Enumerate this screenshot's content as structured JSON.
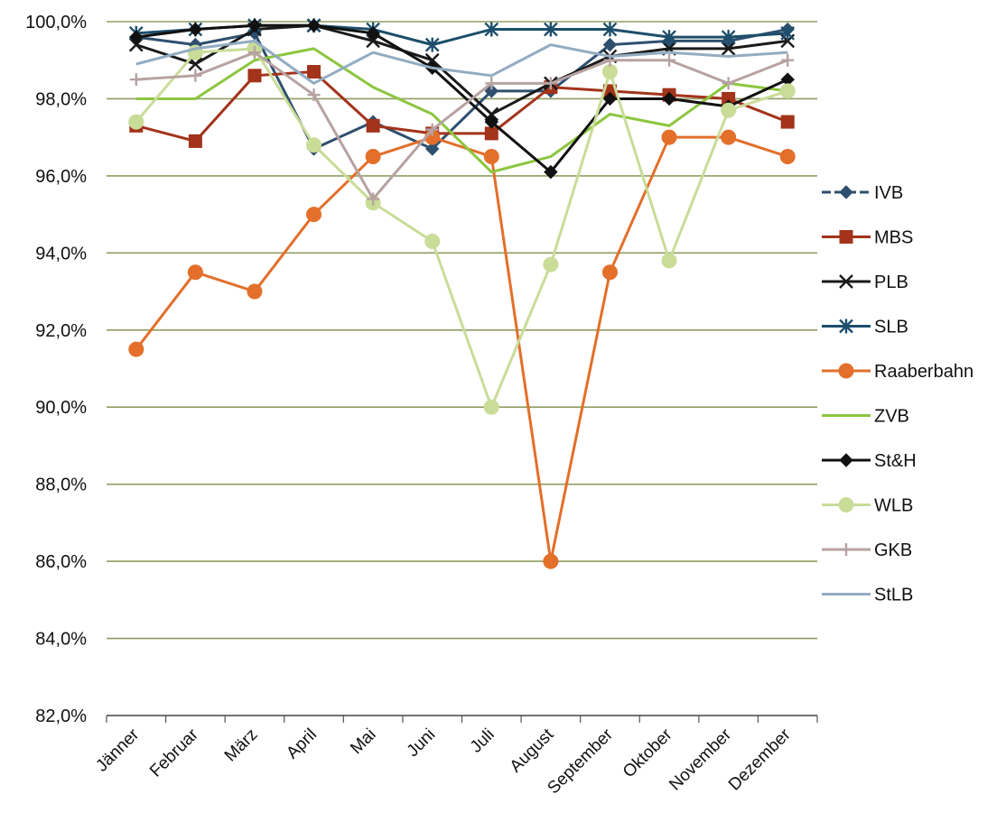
{
  "chart_data": {
    "type": "line",
    "categories": [
      "Jänner",
      "Februar",
      "März",
      "April",
      "Mai",
      "Juni",
      "Juli",
      "August",
      "September",
      "Oktober",
      "November",
      "Dezember"
    ],
    "ylim": [
      82,
      100
    ],
    "yticks": [
      "82,0%",
      "84,0%",
      "86,0%",
      "88,0%",
      "90,0%",
      "92,0%",
      "94,0%",
      "96,0%",
      "98,0%",
      "100,0%"
    ],
    "grid": true,
    "legend_position": "right",
    "series": [
      {
        "name": "IVB",
        "color": "#2f4f6f",
        "marker": "diamond",
        "dashed": true,
        "values": [
          99.6,
          99.4,
          99.7,
          96.7,
          97.4,
          96.7,
          98.2,
          98.2,
          99.4,
          99.5,
          99.5,
          99.8
        ]
      },
      {
        "name": "MBS",
        "color": "#a3331b",
        "marker": "square",
        "values": [
          97.3,
          96.9,
          98.6,
          98.7,
          97.3,
          97.1,
          97.1,
          98.3,
          98.2,
          98.1,
          98.0,
          97.4
        ]
      },
      {
        "name": "PLB",
        "color": "#1a1a1a",
        "marker": "x",
        "values": [
          99.4,
          98.9,
          99.8,
          99.9,
          99.5,
          99.0,
          97.6,
          98.4,
          99.1,
          99.3,
          99.3,
          99.5
        ]
      },
      {
        "name": "SLB",
        "color": "#1d4e6b",
        "marker": "star",
        "values": [
          99.7,
          99.8,
          99.9,
          99.9,
          99.8,
          99.4,
          99.8,
          99.8,
          99.8,
          99.6,
          99.6,
          99.7
        ]
      },
      {
        "name": "Raaberbahn",
        "color": "#e36f2a",
        "marker": "circle",
        "values": [
          91.5,
          93.5,
          93.0,
          95.0,
          96.5,
          97.0,
          96.5,
          86.0,
          93.5,
          97.0,
          97.0,
          96.5
        ]
      },
      {
        "name": "ZVB",
        "color": "#8cc63f",
        "marker": "none",
        "values": [
          98.0,
          98.0,
          99.0,
          99.3,
          98.3,
          97.6,
          96.1,
          96.5,
          97.6,
          97.3,
          98.4,
          98.2
        ]
      },
      {
        "name": "St&H",
        "color": "#111111",
        "marker": "diamond",
        "values": [
          99.6,
          99.8,
          99.9,
          99.9,
          99.7,
          98.8,
          97.4,
          96.1,
          98.0,
          98.0,
          97.8,
          98.5
        ]
      },
      {
        "name": "WLB",
        "color": "#c9dc98",
        "marker": "circle",
        "values": [
          97.4,
          99.2,
          99.3,
          96.8,
          95.3,
          94.3,
          90.0,
          93.7,
          98.7,
          93.8,
          97.7,
          98.2
        ]
      },
      {
        "name": "GKB",
        "color": "#b7a2a2",
        "marker": "plus",
        "values": [
          98.5,
          98.6,
          99.2,
          98.1,
          95.4,
          97.2,
          98.4,
          98.4,
          99.0,
          99.0,
          98.4,
          99.0
        ]
      },
      {
        "name": "StLB",
        "color": "#92acc2",
        "marker": "none",
        "values": [
          98.9,
          99.3,
          99.5,
          98.4,
          99.2,
          98.8,
          98.6,
          99.4,
          99.1,
          99.2,
          99.1,
          99.2
        ]
      }
    ]
  }
}
